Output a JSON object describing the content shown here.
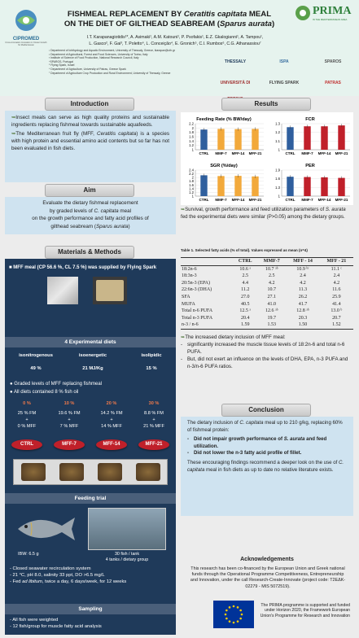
{
  "tag": "Presentation ID: 69",
  "header": {
    "title_part1": "FISHMEAL REPLACEMENT BY ",
    "title_species": "Ceratitis capitata",
    "title_part2": " MEAL",
    "title_line2_a": "ON THE DIET OF GILTHEAD SEABREAM (",
    "title_line2_b": "Sparus aurata",
    "title_line2_c": ")",
    "authors_1": "I.T. Karapanagiotidis¹*, A. Asimaki¹, A.M. Katouni¹, P. Psofakis¹, E.Z. Gkalogianni¹, A. Tampou¹,",
    "authors_2": "L. Gasco², F. Gai³, T. Poletto⁴, L. Conceição⁴, E. Gronich⁵, C.I. Rumbos⁶, C.G. Athanassiou⁷",
    "affil": [
      "¹ Department of Ichthyology and Aquatic Environment, University of Thessaly, Greece, ikarapan@uth.gr",
      "² Department of Agricultural, Forest and Food Sciences, University of Torino, Italy",
      "³ Institute of Science of Food Production, National Research Council, Italy",
      "⁴SPAROS, Portugal",
      "⁵ Flying Spark, Israel",
      "⁶ Department of Agriculture, University of Patras, Greece Spark",
      "⁷ Department of Agriculture Crop Production and Rural Environment, University of Thessaly, Greece"
    ],
    "logo_left": "CIPROMED",
    "logo_left_sub": "Cross-Innovation Innovation in Cluster Growth for Mediterranean",
    "logo_right": "PRIMA",
    "logo_right_sub": "IN THE MEDITERRANEAN AREA",
    "partner_logos": [
      "THESSALY",
      "ISPA",
      "SPAROS",
      "UNIVERSITÀ DI TORINO",
      "FLYING SPARK",
      "PATRAS"
    ]
  },
  "intro": {
    "title": "Introduction",
    "p1": "Insect meals can serve as high quality proteins and sustainable ingredients replacing fishmeal towards sustainable aquafeeds.",
    "p2a": "The Mediterranean fruit fly (MFF, ",
    "p2b": "Ceratitis capitata",
    "p2c": ") is a species with high protein and essential amino acid contents but so far has not been evaluated in fish diets."
  },
  "aim": {
    "title": "Aim",
    "l1": "Evaluate the dietary fishmeal replacement",
    "l2a": "by graded levels of ",
    "l2b": "C. capitata",
    "l2c": " meal",
    "l3": "on the growth performance and fatty acid profiles of",
    "l4a": "gilthead seabream (",
    "l4b": "Sparus aurata",
    "l4c": ")"
  },
  "methods": {
    "title": "Materials & Methods",
    "mff": "MFF meal (CP 56.6 %, CL 7.5 %) was supplied by Flying Spark",
    "exp_title": "4 Experimental diets",
    "iso": [
      "isonitrogenous",
      "isoenergetic",
      "isolipidic"
    ],
    "iso_vals": [
      "49 %",
      "21 MJ/Kg",
      "15 %"
    ],
    "b1": "Graded levels of MFF replacing fishmeal",
    "b2": "All diets contained 8 % fish oil",
    "levels": [
      "0 %",
      "10 %",
      "20 %",
      "30 %"
    ],
    "comp1": [
      "25 % FM",
      "19.6 % FM",
      "14.2 % FM",
      "8.8 % FM"
    ],
    "comp_plus": [
      "+",
      "+",
      "+",
      "+"
    ],
    "comp2": [
      "0 % MFF",
      "7 % MFF",
      "14 % MFF",
      "21 % MFF"
    ],
    "diets": [
      "CTRL",
      "MFF-7",
      "MFF-14",
      "MFF-21"
    ],
    "feed_title": "Feeding trial",
    "ibw": "IBW: 6.5 g",
    "tank1": "30 fish / tank",
    "tank2": "4 tanks / dietary group",
    "f1": "- Closed seawater recirculation system",
    "f2": "- 21 °C, pH 8.0, salinity 33 ppt, DO >6.5 mg/L",
    "f3a": "- Fed ",
    "f3b": "ad libitum",
    "f3c": ", twice a day, 6 days/week, for 12 weeks",
    "samp_title": "Sampling",
    "s1": "- All fish were weighted",
    "s2": "- 12 fish/group for muscle fatty acid analysis"
  },
  "results": {
    "title": "Results",
    "r1a": "Survival, growth performance and feed utilization parameters of ",
    "r1b": "S. aurata",
    "r1c": " fed the experimental diets were similar (P>0.05) among the dietary groups.",
    "table_caption": "Table 1. Selected fatty acids (% of total). Values expressed as mean (n=4)",
    "table_head": [
      "",
      "CTRL",
      "MMF-7",
      "MFF - 14",
      "MFF - 21"
    ],
    "table_rows": [
      [
        "18:2n-6",
        "10.6 ᵃ",
        "10.7 ᵃᵇ",
        "10.9 ᵇᶜ",
        "11.1 ᶜ"
      ],
      [
        "18:3n-3",
        "2.5",
        "2.5",
        "2.4",
        "2.4"
      ],
      [
        "20:5n-3 (EPA)",
        "4.4",
        "4.2",
        "4.2",
        "4.2"
      ],
      [
        "22:6n-3 (DHA)",
        "11.2",
        "10.7",
        "11.3",
        "11.6"
      ],
      [
        "SFA",
        "27.0",
        "27.1",
        "26.2",
        "25.9"
      ],
      [
        "MUFA",
        "40.5",
        "41.0",
        "41.7",
        "41.4"
      ],
      [
        "Total n-6 PUFA",
        "12.5 ᵃ",
        "12.6 ᵃᵇ",
        "12.8 ᵃᵇ",
        "13.0 ᵇ"
      ],
      [
        "Total n-3 PUFA",
        "20.4",
        "19.7",
        "20.3",
        "20.7"
      ],
      [
        "n-3 / n-6",
        "1.59",
        "1.53",
        "1.50",
        "1.52"
      ]
    ],
    "d0": "The increased dietary inclusion of MFF meal:",
    "d1": "significantly increased the muscle tissue levels of 18:2n-6 and total n-6 PUFA.",
    "d2": "But, did not exert an influence on the levels of DHA, EPA, n-3 PUFA and n-3/n-6 PUFA ratios."
  },
  "conclusion": {
    "title": "Conclusion",
    "p1a": "The dietary inclusion of ",
    "p1b": "C. capitata",
    "p1c": " meal up to 210 g/kg, replacing 60% of fishmeal protein:",
    "b1a": "Did not impair growth performance of ",
    "b1b": "S. aurata",
    "b1c": " and feed utilization.",
    "b2": "Did not lower the n-3 fatty acid profile of fillet.",
    "p2a": "These encouraging findings recommend a deeper look on the use of ",
    "p2b": "C. capitata",
    "p2c": " meal in fish diets as up to date no relative literature exists."
  },
  "ack": {
    "title": "Acknowledgements",
    "text": "This research has been co-financed by the European Union and Greek national funds through the Operational Programme Competitiveness, Entrepreneurship and Innovation, under the call Research-Create-Innovate (project code: T2EΔK-02279 - MIS 5072519).",
    "eu_text": "The PRIMA programme is supported and funded under Horizon 2020, the Framework European Union's Programme for Research and Innovation"
  },
  "chart_data": [
    {
      "type": "bar",
      "title": "Feeding Rate (% BW/day)",
      "categories": [
        "CTRL",
        "MMF-7",
        "MFF-14",
        "MFF-21"
      ],
      "values": [
        1.93,
        1.96,
        1.95,
        1.96
      ],
      "ylim": [
        1,
        2.2
      ],
      "yticks": [
        1,
        1.2,
        1.4,
        1.6,
        1.8,
        2,
        2.2
      ],
      "colors": [
        "#2f5f9e",
        "#f2a93b",
        "#f2a93b",
        "#f2a93b"
      ]
    },
    {
      "type": "bar",
      "title": "FCR",
      "categories": [
        "CTRL",
        "MMF-7",
        "MFF-14",
        "MFF-21"
      ],
      "values": [
        1.26,
        1.27,
        1.27,
        1.28
      ],
      "ylim": [
        1,
        1.3
      ],
      "yticks": [
        1,
        1.1,
        1.2,
        1.3
      ],
      "colors": [
        "#2f5f9e",
        "#c0202a",
        "#c0202a",
        "#c0202a"
      ]
    },
    {
      "type": "bar",
      "title": "SGR (%/day)",
      "categories": [
        "CTRL",
        "MMF-7",
        "MFF-14",
        "MFF-21"
      ],
      "values": [
        2.12,
        2.08,
        2.09,
        2.06
      ],
      "ylim": [
        1,
        2.4
      ],
      "yticks": [
        1,
        1.2,
        1.4,
        1.6,
        1.8,
        2,
        2.2,
        2.4
      ],
      "colors": [
        "#2f5f9e",
        "#f2a93b",
        "#f2a93b",
        "#f2a93b"
      ]
    },
    {
      "type": "bar",
      "title": "PER",
      "categories": [
        "CTRL",
        "MMF-7",
        "MFF-14",
        "MFF-21"
      ],
      "values": [
        1.67,
        1.66,
        1.65,
        1.63
      ],
      "ylim": [
        1,
        1.9
      ],
      "yticks": [
        1,
        1.3,
        1.6,
        1.9
      ],
      "colors": [
        "#2f5f9e",
        "#c0202a",
        "#c0202a",
        "#c0202a"
      ]
    }
  ]
}
